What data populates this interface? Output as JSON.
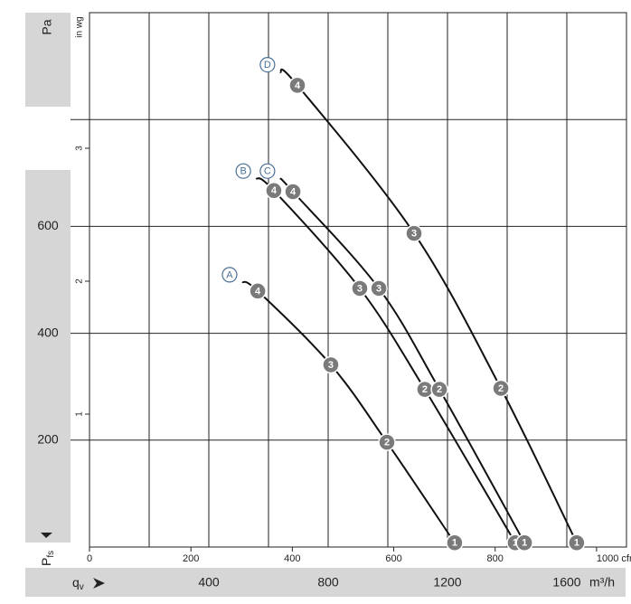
{
  "chart_data": {
    "type": "line",
    "y_label": "Pa",
    "y2_label": "in wg",
    "x_label": "m³/h",
    "y_axis_title": "P",
    "y_axis_title_sub": "fs",
    "x_axis_title": "q",
    "x_axis_title_sub": "v",
    "xlim": [
      0,
      1800
    ],
    "xticks": [
      400,
      800,
      1200,
      1600
    ],
    "x_minor_ticks": [
      200,
      600,
      1000,
      1400
    ],
    "ylim": [
      0,
      1000
    ],
    "yticks": [
      200,
      400,
      600
    ],
    "y_minor_ticks": [
      800
    ],
    "x2lim": [
      0,
      1059
    ],
    "x2ticks": [
      0,
      200,
      400,
      600,
      800,
      {
        "value": 1000,
        "label": "1000 cfm"
      }
    ],
    "y2lim": [
      0,
      4.02
    ],
    "y2ticks": [
      1,
      2,
      3
    ],
    "grid": true,
    "line_color": "#111111",
    "badge_color": "#7a7a7a",
    "tag_color": "#4a6f96",
    "series": [
      {
        "name": "A",
        "x": [
          512,
          564,
          809,
          997,
          1224
        ],
        "values": [
          496,
          479,
          341,
          196,
          8
        ],
        "point_labels": [
          null,
          "4",
          "3",
          "2",
          "1"
        ]
      },
      {
        "name": "B",
        "x": [
          558,
          618,
          906,
          1124,
          1427
        ],
        "values": [
          690,
          667,
          484,
          295,
          8
        ],
        "point_labels": [
          null,
          "4",
          "3",
          "2",
          "1"
        ]
      },
      {
        "name": "C",
        "x": [
          639,
          682,
          970,
          1173,
          1458
        ],
        "values": [
          690,
          665,
          484,
          295,
          8
        ],
        "point_labels": [
          null,
          "4",
          "3",
          "2",
          "1"
        ]
      },
      {
        "name": "D",
        "x": [
          639,
          697,
          1088,
          1379,
          1633
        ],
        "values": [
          889,
          864,
          587,
          297,
          8
        ],
        "point_labels": [
          null,
          "4",
          "3",
          "2",
          "1"
        ]
      }
    ]
  }
}
